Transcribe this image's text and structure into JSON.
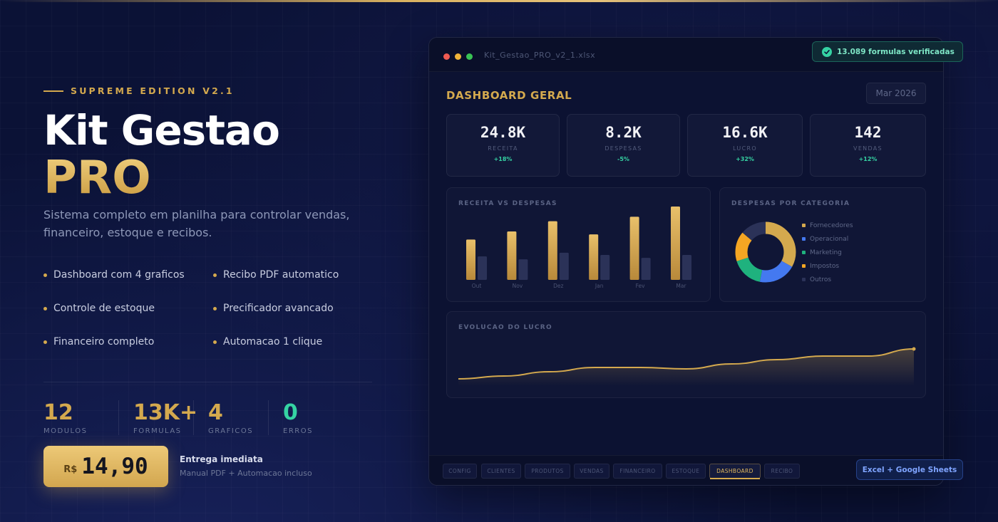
{
  "hero": {
    "edition": "SUPREME EDITION V2.1",
    "title_line1": "Kit Gestao",
    "title_line2": "PRO",
    "subtitle": "Sistema completo em planilha para controlar vendas, financeiro, estoque e recibos."
  },
  "features": [
    "Dashboard com 4 graficos",
    "Recibo PDF automatico",
    "Controle de estoque",
    "Precificador avancado",
    "Financeiro completo",
    "Automacao 1 clique"
  ],
  "stats": [
    {
      "value": "12",
      "label": "MODULOS"
    },
    {
      "value": "13K+",
      "label": "FORMULAS"
    },
    {
      "value": "4",
      "label": "GRAFICOS"
    },
    {
      "value": "0",
      "label": "ERROS"
    }
  ],
  "price": {
    "currency": "R$",
    "value": "14,90"
  },
  "delivery": {
    "title": "Entrega imediata",
    "subtitle": "Manual PDF + Automacao incluso"
  },
  "window": {
    "filename": "Kit_Gestao_PRO_v2_1.xlsx",
    "dashboard_title": "DASHBOARD GERAL",
    "period": "Mar 2026"
  },
  "kpis": [
    {
      "value": "24.8K",
      "label": "RECEITA",
      "delta": "+18%"
    },
    {
      "value": "8.2K",
      "label": "DESPESAS",
      "delta": "-5%"
    },
    {
      "value": "16.6K",
      "label": "LUCRO",
      "delta": "+32%"
    },
    {
      "value": "142",
      "label": "VENDAS",
      "delta": "+12%"
    }
  ],
  "charts": {
    "revenue_title": "RECEITA VS DESPESAS",
    "category_title": "DESPESAS POR CATEGORIA",
    "profit_title": "EVOLUCAO DO LUCRO"
  },
  "chart_data": [
    {
      "type": "bar",
      "title": "RECEITA VS DESPESAS",
      "categories": [
        "Out",
        "Nov",
        "Dez",
        "Jan",
        "Fev",
        "Mar"
      ],
      "series": [
        {
          "values": [
            55,
            66,
            80,
            62,
            86,
            100
          ]
        },
        {
          "values": [
            32,
            28,
            37,
            34,
            30,
            34
          ]
        }
      ],
      "colors": [
        "#d4a94e",
        "#2b3258"
      ],
      "ylim": [
        0,
        100
      ]
    },
    {
      "type": "pie",
      "title": "DESPESAS POR CATEGORIA",
      "labels": [
        "Fornecedores",
        "Operacional",
        "Marketing",
        "Impostos",
        "Outros"
      ],
      "values": [
        33,
        20,
        17,
        16,
        14
      ],
      "colors": [
        "#d4a94e",
        "#4479f0",
        "#1fb27e",
        "#f5a623",
        "#2b3258"
      ]
    },
    {
      "type": "area",
      "title": "EVOLUCAO DO LUCRO",
      "values": [
        10,
        14,
        20,
        26,
        26,
        24,
        31,
        37,
        42,
        42,
        52
      ],
      "colors": [
        "#d4a94e"
      ],
      "ylim": [
        0,
        60
      ]
    }
  ],
  "tabs": [
    "CONFIG",
    "CLIENTES",
    "PRODUTOS",
    "VENDAS",
    "FINANCEIRO",
    "ESTOQUE",
    "DASHBOARD",
    "RECIBO"
  ],
  "active_tab": "DASHBOARD",
  "badges": {
    "verified": "13.089 formulas verificadas",
    "platforms": "Excel + Google Sheets"
  }
}
